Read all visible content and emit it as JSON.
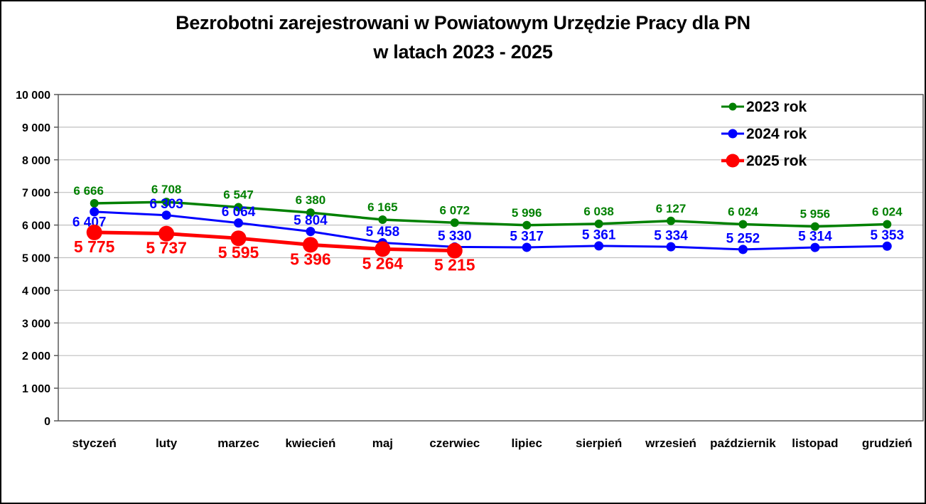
{
  "title": {
    "line1": "Bezrobotni zarejestrowani w Powiatowym Urzędzie Pracy dla PN",
    "line2": "w latach 2023 - 2025"
  },
  "colors": {
    "series_2023": "#008000",
    "series_2024": "#0000ff",
    "series_2025": "#ff0000",
    "gridline": "#bfbfbf",
    "plot_border": "#595959",
    "text": "#000000",
    "background": "#ffffff"
  },
  "chart_data": {
    "type": "line",
    "title": "Bezrobotni zarejestrowani w Powiatowym Urzędzie Pracy dla PN w latach 2023 - 2025",
    "categories": [
      "styczeń",
      "luty",
      "marzec",
      "kwiecień",
      "maj",
      "czerwiec",
      "lipiec",
      "sierpień",
      "wrzesień",
      "październik",
      "listopad",
      "grudzień"
    ],
    "series": [
      {
        "name": "2023 rok",
        "color": "#008000",
        "values": [
          6666,
          6708,
          6547,
          6380,
          6165,
          6072,
          5996,
          6038,
          6127,
          6024,
          5956,
          6024
        ],
        "line_width": 3.5,
        "marker_radius": 6,
        "label_size": 17,
        "label_position": "above",
        "above_gap": 6,
        "label_dx": {
          "0": -8
        }
      },
      {
        "name": "2024 rok",
        "color": "#0000ff",
        "values": [
          6407,
          6303,
          6064,
          5804,
          5458,
          5330,
          5317,
          5361,
          5334,
          5252,
          5314,
          5353
        ],
        "line_width": 3,
        "marker_radius": 6.5,
        "label_size": 19,
        "label_position": "above",
        "above_gap": 3,
        "label_dx": {
          "0": -7
        },
        "label_position_overrides": {
          "0": "below"
        }
      },
      {
        "name": "2025 rok",
        "color": "#ff0000",
        "values": [
          5775,
          5737,
          5595,
          5396,
          5264,
          5215
        ],
        "line_width": 5,
        "marker_radius": 11,
        "label_size": 23,
        "label_position": "below",
        "above_gap": 6
      }
    ],
    "xlabel": "",
    "ylabel": "",
    "ylim": [
      0,
      10000
    ],
    "ytick_step": 1000,
    "ytick_labels": [
      "0",
      "1 000",
      "2 000",
      "3 000",
      "4 000",
      "5 000",
      "6 000",
      "7 000",
      "8 000",
      "9 000",
      "10 000"
    ],
    "grid": true,
    "legend_position": "top-right",
    "legend_labels": [
      "2023 rok",
      "2024 rok",
      "2025 rok"
    ],
    "number_format": "space-thousands"
  }
}
